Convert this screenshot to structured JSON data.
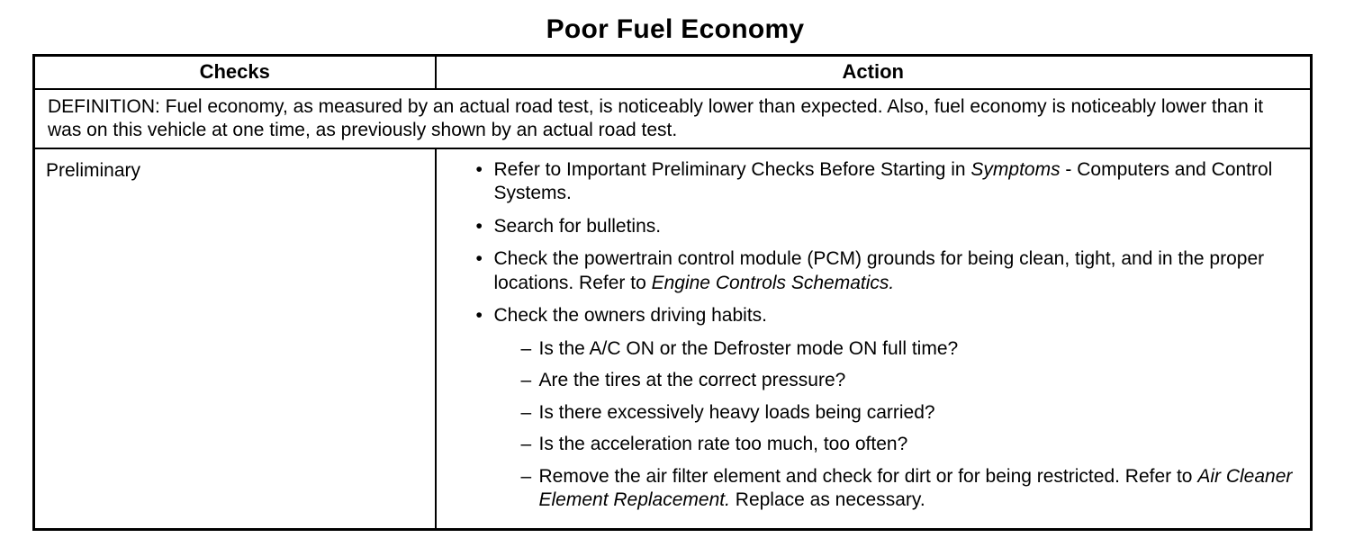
{
  "title": "Poor Fuel Economy",
  "colors": {
    "background": "#ffffff",
    "text": "#000000",
    "border": "#000000"
  },
  "table": {
    "header": {
      "checks": "Checks",
      "action": "Action"
    },
    "definition": "DEFINITION: Fuel economy, as measured by an actual road test, is noticeably lower than expected. Also, fuel economy is noticeably lower than it was on this vehicle at one time, as previously shown by an actual road test.",
    "row": {
      "check_label": "Preliminary",
      "bullets": [
        {
          "marker": "•",
          "segments": [
            {
              "text": "Refer to Important Preliminary Checks Before Starting in "
            },
            {
              "text": "Symptoms",
              "italic": true
            },
            {
              "text": " - Computers and Control Systems."
            }
          ]
        },
        {
          "marker": "•",
          "segments": [
            {
              "text": "Search for bulletins."
            }
          ]
        },
        {
          "marker": "•",
          "segments": [
            {
              "text": "Check the powertrain control module (PCM) grounds for being clean, tight, and in the proper locations. Refer to "
            },
            {
              "text": "Engine Controls Schematics.",
              "italic": true
            }
          ]
        },
        {
          "marker": "•",
          "segments": [
            {
              "text": "Check the owners driving habits."
            }
          ]
        },
        {
          "marker": "–",
          "sub": true,
          "segments": [
            {
              "text": "Is the A/C ON or the Defroster mode ON full time?"
            }
          ]
        },
        {
          "marker": "–",
          "sub": true,
          "segments": [
            {
              "text": "Are the tires at the correct pressure?"
            }
          ]
        },
        {
          "marker": "–",
          "sub": true,
          "segments": [
            {
              "text": "Is there excessively heavy loads being carried?"
            }
          ]
        },
        {
          "marker": "–",
          "sub": true,
          "segments": [
            {
              "text": "Is the acceleration rate too much, too often?"
            }
          ]
        },
        {
          "marker": "–",
          "sub": true,
          "segments": [
            {
              "text": "Remove the air filter element and check for dirt or for being restricted. Refer to "
            },
            {
              "text": "Air Cleaner Element Replacement.",
              "italic": true
            },
            {
              "text": " Replace as necessary."
            }
          ]
        }
      ]
    }
  }
}
